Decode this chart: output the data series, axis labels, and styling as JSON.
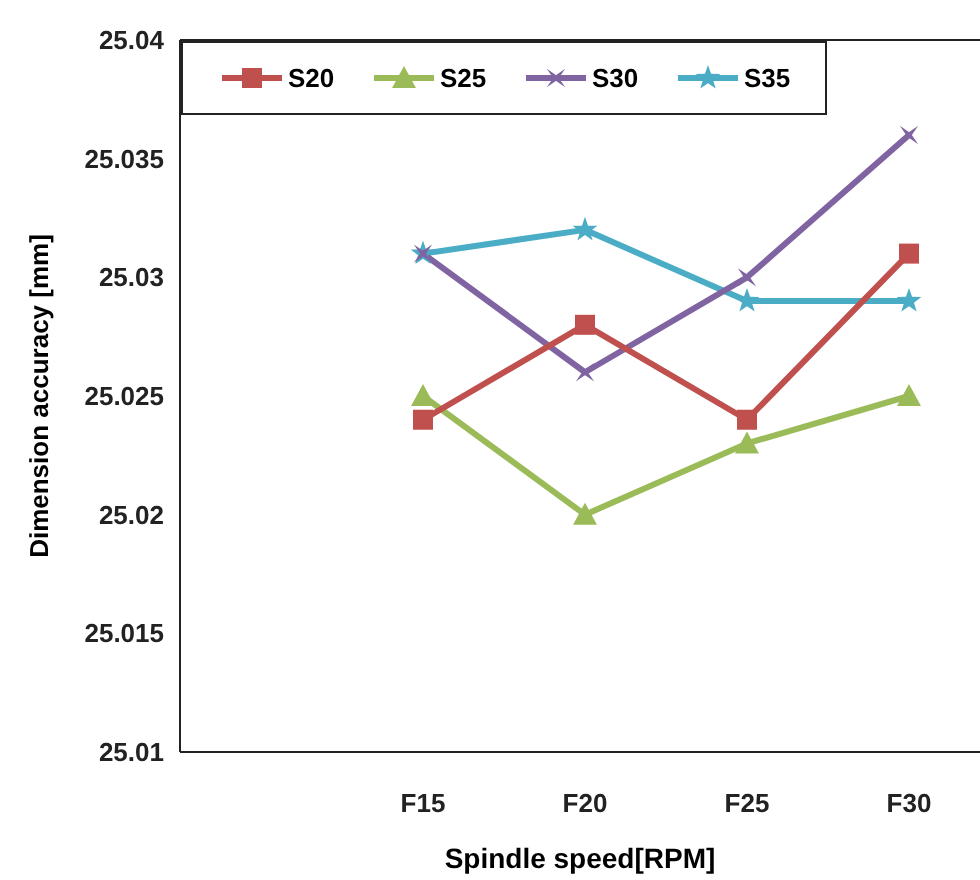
{
  "chart_data": {
    "type": "line",
    "xlabel": "Spindle speed[RPM]",
    "ylabel": "Dimension accuracy  [mm]",
    "categories": [
      null,
      "F15",
      "F20",
      "F25",
      "F30"
    ],
    "series": [
      {
        "name": "S20",
        "color": "#c0504d",
        "marker": "square",
        "values": [
          null,
          25.024,
          25.028,
          25.024,
          25.031
        ]
      },
      {
        "name": "S25",
        "color": "#9bbb59",
        "marker": "triangle",
        "values": [
          null,
          25.025,
          25.02,
          25.023,
          25.025
        ]
      },
      {
        "name": "S30",
        "color": "#8064a2",
        "marker": "cross",
        "values": [
          null,
          25.031,
          25.026,
          25.03,
          25.036
        ]
      },
      {
        "name": "S35",
        "color": "#4bacc6",
        "marker": "star",
        "values": [
          null,
          25.031,
          25.032,
          25.029,
          25.029
        ]
      }
    ],
    "ylim": [
      25.01,
      25.04
    ],
    "yticks": [
      25.01,
      25.015,
      25.02,
      25.025,
      25.03,
      25.035,
      25.04
    ],
    "grid": false,
    "legend": "top left"
  }
}
